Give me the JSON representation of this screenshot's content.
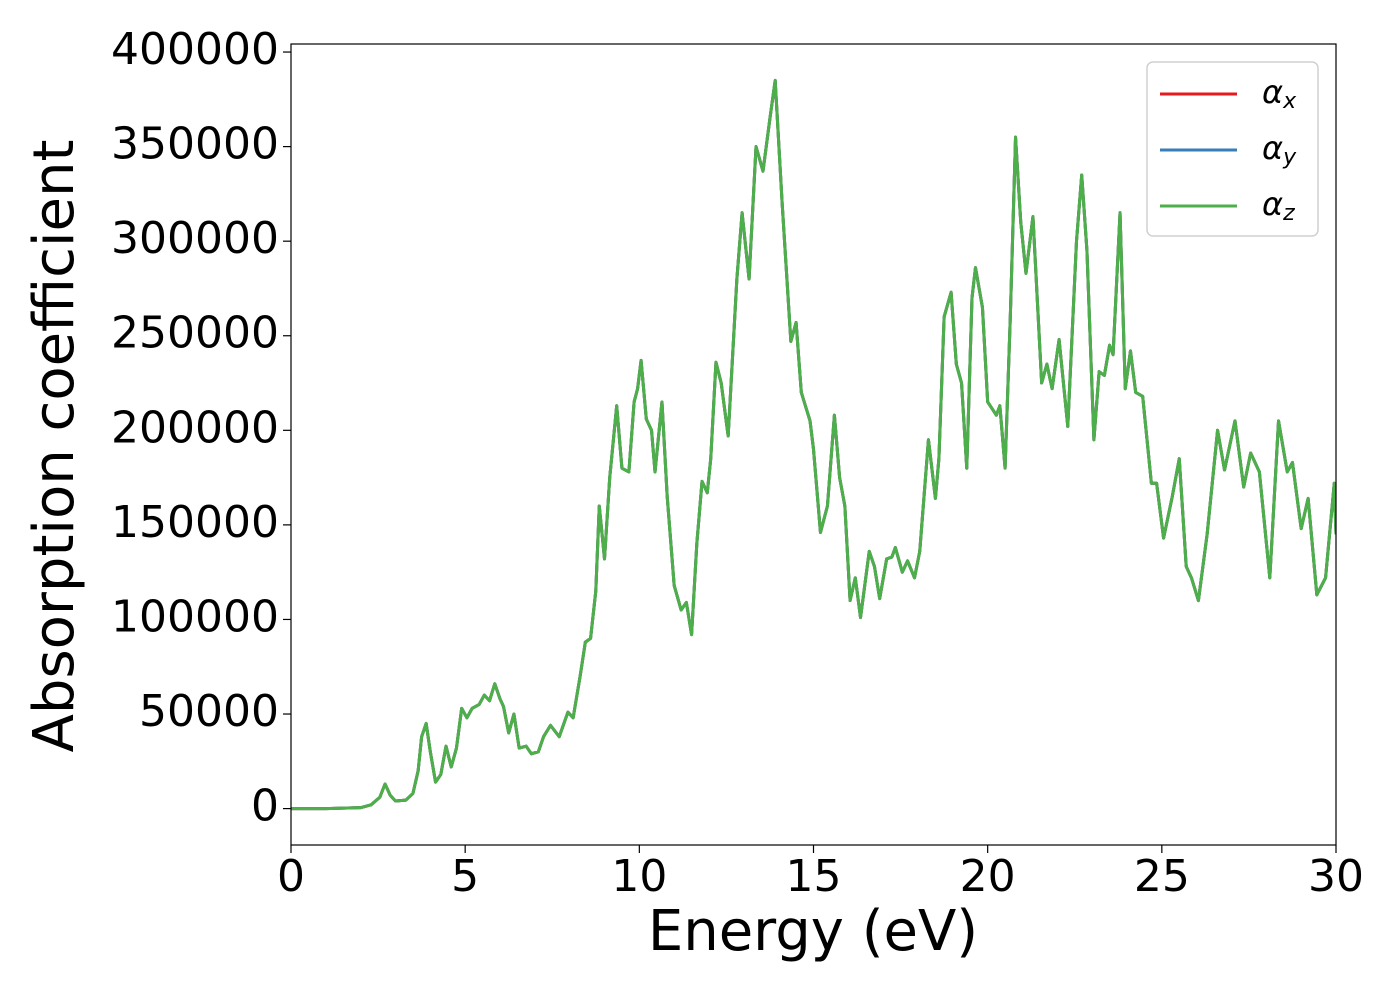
{
  "chart_data": {
    "type": "line",
    "xlabel": "Energy (eV)",
    "ylabel": "Absorption coefficient",
    "x": [
      0,
      1,
      2,
      2.3,
      2.55,
      2.7,
      2.85,
      3.0,
      3.3,
      3.5,
      3.65,
      3.75,
      3.88,
      4.0,
      4.15,
      4.3,
      4.45,
      4.6,
      4.75,
      4.9,
      5.05,
      5.2,
      5.4,
      5.55,
      5.7,
      5.75,
      5.85,
      6.0,
      6.1,
      6.25,
      6.4,
      6.55,
      6.75,
      6.9,
      7.1,
      7.25,
      7.45,
      7.7,
      7.95,
      8.1,
      8.3,
      8.45,
      8.6,
      8.75,
      8.85,
      9.0,
      9.15,
      9.35,
      9.5,
      9.7,
      9.85,
      9.95,
      10.05,
      10.2,
      10.35,
      10.45,
      10.65,
      10.8,
      11.0,
      11.2,
      11.35,
      11.5,
      11.65,
      11.8,
      11.95,
      12.05,
      12.2,
      12.35,
      12.55,
      12.8,
      12.95,
      13.15,
      13.35,
      13.55,
      13.75,
      13.9,
      14.1,
      14.35,
      14.5,
      14.65,
      14.9,
      15.0,
      15.2,
      15.4,
      15.6,
      15.75,
      15.9,
      16.05,
      16.2,
      16.35,
      16.6,
      16.75,
      16.9,
      17.1,
      17.25,
      17.35,
      17.55,
      17.7,
      17.9,
      18.05,
      18.3,
      18.5,
      18.6,
      18.75,
      18.95,
      19.1,
      19.25,
      19.4,
      19.55,
      19.65,
      19.85,
      20.0,
      20.25,
      20.35,
      20.5,
      20.65,
      20.8,
      20.95,
      21.1,
      21.3,
      21.55,
      21.7,
      21.85,
      22.05,
      22.3,
      22.55,
      22.7,
      22.85,
      23.05,
      23.2,
      23.35,
      23.5,
      23.6,
      23.8,
      23.95,
      24.1,
      24.25,
      24.45,
      24.7,
      24.85,
      25.05,
      25.3,
      25.5,
      25.7,
      25.85,
      26.05,
      26.3,
      26.6,
      26.8,
      27.1,
      27.35,
      27.55,
      27.8,
      28.1,
      28.35,
      28.6,
      28.75,
      29.0,
      29.2,
      29.45,
      29.7,
      29.95,
      30.0
    ],
    "series": [
      {
        "name": "αx",
        "color": "#e41a1c",
        "values": [
          0,
          0,
          500,
          2000,
          6000,
          13000,
          7000,
          4000,
          4500,
          8000,
          20000,
          38000,
          45000,
          30000,
          14000,
          18000,
          33000,
          22000,
          32000,
          53000,
          48000,
          53000,
          55000,
          60000,
          57000,
          60000,
          66000,
          58000,
          54000,
          40000,
          50000,
          32000,
          33000,
          29000,
          30000,
          38000,
          44000,
          38000,
          51000,
          48000,
          70000,
          88000,
          90000,
          115000,
          160000,
          132000,
          175000,
          213000,
          180000,
          178000,
          215000,
          222000,
          237000,
          206000,
          200000,
          178000,
          215000,
          165000,
          118000,
          105000,
          109000,
          92000,
          140000,
          173000,
          167000,
          185000,
          236000,
          225000,
          197000,
          280000,
          315000,
          280000,
          350000,
          337000,
          365000,
          385000,
          320000,
          247000,
          257000,
          220000,
          205000,
          190000,
          146000,
          160000,
          208000,
          175000,
          160000,
          110000,
          122000,
          101000,
          136000,
          128000,
          111000,
          132000,
          133000,
          138000,
          125000,
          131000,
          122000,
          136000,
          195000,
          164000,
          185000,
          260000,
          273000,
          235000,
          225000,
          180000,
          270000,
          286000,
          265000,
          215000,
          208000,
          213000,
          180000,
          260000,
          355000,
          310000,
          283000,
          313000,
          225000,
          235000,
          222000,
          248000,
          202000,
          300000,
          335000,
          295000,
          195000,
          231000,
          229000,
          245000,
          240000,
          315000,
          222000,
          242000,
          220000,
          218000,
          172000,
          172000,
          143000,
          165000,
          185000,
          128000,
          122000,
          110000,
          145000,
          200000,
          179000,
          205000,
          170000,
          188000,
          178000,
          122000,
          205000,
          178000,
          183000,
          148000,
          164000,
          113000,
          122000,
          172000,
          145000
        ]
      },
      {
        "name": "αy",
        "color": "#377eb8",
        "values": [
          0,
          0,
          500,
          2000,
          6000,
          13000,
          7000,
          4000,
          4500,
          8000,
          20000,
          38000,
          45000,
          30000,
          14000,
          18000,
          33000,
          22000,
          32000,
          53000,
          48000,
          53000,
          55000,
          60000,
          57000,
          60000,
          66000,
          58000,
          54000,
          40000,
          50000,
          32000,
          33000,
          29000,
          30000,
          38000,
          44000,
          38000,
          51000,
          48000,
          70000,
          88000,
          90000,
          115000,
          160000,
          132000,
          175000,
          213000,
          180000,
          178000,
          215000,
          222000,
          237000,
          206000,
          200000,
          178000,
          215000,
          165000,
          118000,
          105000,
          109000,
          92000,
          140000,
          173000,
          167000,
          185000,
          236000,
          225000,
          197000,
          280000,
          315000,
          280000,
          350000,
          337000,
          365000,
          385000,
          320000,
          247000,
          257000,
          220000,
          205000,
          190000,
          146000,
          160000,
          208000,
          175000,
          160000,
          110000,
          122000,
          101000,
          136000,
          128000,
          111000,
          132000,
          133000,
          138000,
          125000,
          131000,
          122000,
          136000,
          195000,
          164000,
          185000,
          260000,
          273000,
          235000,
          225000,
          180000,
          270000,
          286000,
          265000,
          215000,
          208000,
          213000,
          180000,
          260000,
          355000,
          310000,
          283000,
          313000,
          225000,
          235000,
          222000,
          248000,
          202000,
          300000,
          335000,
          295000,
          195000,
          231000,
          229000,
          245000,
          240000,
          315000,
          222000,
          242000,
          220000,
          218000,
          172000,
          172000,
          143000,
          165000,
          185000,
          128000,
          122000,
          110000,
          145000,
          200000,
          179000,
          205000,
          170000,
          188000,
          178000,
          122000,
          205000,
          178000,
          183000,
          148000,
          164000,
          113000,
          122000,
          172000,
          145000
        ]
      },
      {
        "name": "αz",
        "color": "#4daf4a",
        "values": [
          0,
          0,
          500,
          2000,
          6000,
          13000,
          7000,
          4000,
          4500,
          8000,
          20000,
          38000,
          45000,
          30000,
          14000,
          18000,
          33000,
          22000,
          32000,
          53000,
          48000,
          53000,
          55000,
          60000,
          57000,
          60000,
          66000,
          58000,
          54000,
          40000,
          50000,
          32000,
          33000,
          29000,
          30000,
          38000,
          44000,
          38000,
          51000,
          48000,
          70000,
          88000,
          90000,
          115000,
          160000,
          132000,
          175000,
          213000,
          180000,
          178000,
          215000,
          222000,
          237000,
          206000,
          200000,
          178000,
          215000,
          165000,
          118000,
          105000,
          109000,
          92000,
          140000,
          173000,
          167000,
          185000,
          236000,
          225000,
          197000,
          280000,
          315000,
          280000,
          350000,
          337000,
          365000,
          385000,
          320000,
          247000,
          257000,
          220000,
          205000,
          190000,
          146000,
          160000,
          208000,
          175000,
          160000,
          110000,
          122000,
          101000,
          136000,
          128000,
          111000,
          132000,
          133000,
          138000,
          125000,
          131000,
          122000,
          136000,
          195000,
          164000,
          185000,
          260000,
          273000,
          235000,
          225000,
          180000,
          270000,
          286000,
          265000,
          215000,
          208000,
          213000,
          180000,
          260000,
          355000,
          310000,
          283000,
          313000,
          225000,
          235000,
          222000,
          248000,
          202000,
          300000,
          335000,
          295000,
          195000,
          231000,
          229000,
          245000,
          240000,
          315000,
          222000,
          242000,
          220000,
          218000,
          172000,
          172000,
          143000,
          165000,
          185000,
          128000,
          122000,
          110000,
          145000,
          200000,
          179000,
          205000,
          170000,
          188000,
          178000,
          122000,
          205000,
          178000,
          183000,
          148000,
          164000,
          113000,
          122000,
          172000,
          145000
        ]
      }
    ],
    "xlim": [
      0,
      30
    ],
    "xticks": [
      0,
      5,
      10,
      15,
      20,
      25,
      30
    ],
    "ylim": [
      -19250,
      404250
    ],
    "yticks": [
      0,
      50000,
      100000,
      150000,
      200000,
      250000,
      300000,
      350000,
      400000
    ],
    "grid": false,
    "legend": "upper right"
  }
}
